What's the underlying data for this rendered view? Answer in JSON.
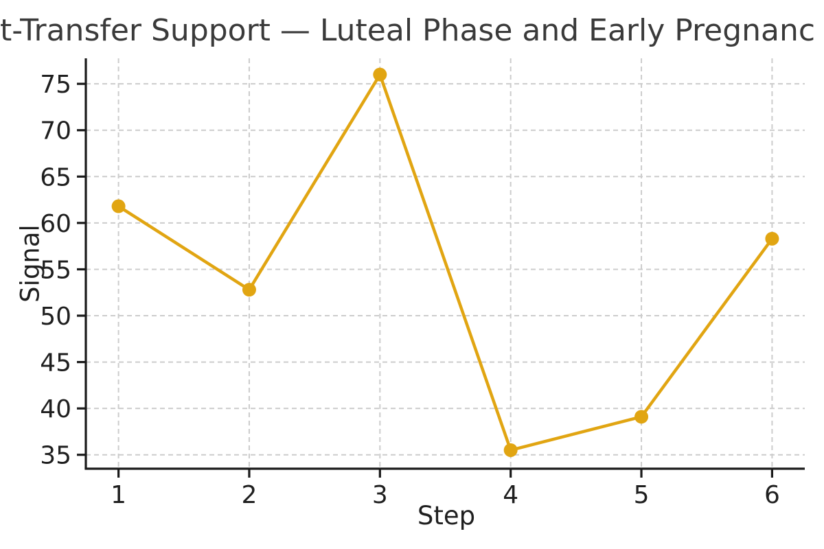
{
  "title": "t-Transfer Support — Luteal Phase and Early Pregnanc",
  "colors": {
    "line": "#E1A512",
    "marker": "#E1A512",
    "grid": "#cccccc",
    "spine": "#1a1a1a",
    "tick_text": "#1f1f1f",
    "title_text": "#3a3a3a",
    "background": "#ffffff"
  },
  "chart_data": {
    "type": "line",
    "title": "t-Transfer Support — Luteal Phase and Early Pregnanc",
    "xlabel": "Step",
    "ylabel": "Signal",
    "x": [
      1,
      2,
      3,
      4,
      5,
      6
    ],
    "series": [
      {
        "name": "Signal",
        "values": [
          61.8,
          52.8,
          76.0,
          35.5,
          39.1,
          58.3
        ]
      }
    ],
    "xticks": [
      "1",
      "2",
      "3",
      "4",
      "5",
      "6"
    ],
    "xtick_values": [
      1,
      2,
      3,
      4,
      5,
      6
    ],
    "yticks": [
      "35",
      "40",
      "45",
      "50",
      "55",
      "60",
      "65",
      "70",
      "75"
    ],
    "ytick_values": [
      35,
      40,
      45,
      50,
      55,
      60,
      65,
      70,
      75
    ],
    "xlim": [
      0.75,
      6.25
    ],
    "ylim": [
      33.5,
      77.75
    ],
    "grid": true,
    "grid_style": "dashed",
    "legend": "none",
    "marker": "circle"
  }
}
